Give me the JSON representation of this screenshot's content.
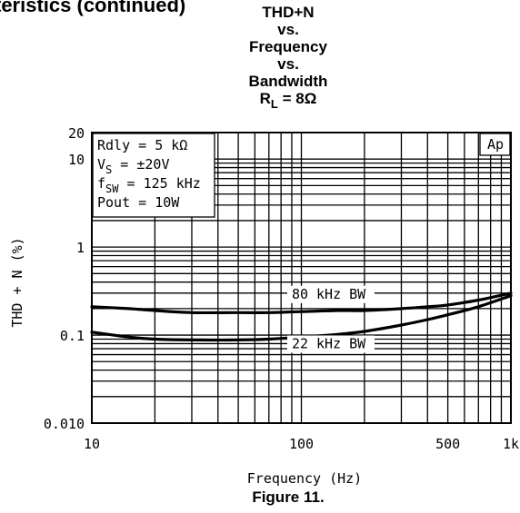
{
  "header_fragment": "teristics (continued)",
  "figure_caption": "Figure 11.",
  "chart_data": {
    "type": "line",
    "title_lines": [
      "THD+N",
      "vs.",
      "Frequency",
      "vs.",
      "Bandwidth"
    ],
    "title_rl": {
      "prefix": "R",
      "sub": "L",
      "suffix": " = 8Ω"
    },
    "conditions": [
      {
        "prefix": "Rdly = 5 kΩ",
        "sub": "",
        "suffix": ""
      },
      {
        "prefix": "V",
        "sub": "S",
        "suffix": " = ±20V"
      },
      {
        "prefix": "f",
        "sub": "SW",
        "suffix": " = 125 kHz"
      },
      {
        "prefix": "Pout = 10W",
        "sub": "",
        "suffix": ""
      }
    ],
    "brand_label": "Ap",
    "xlabel": "Frequency (Hz)",
    "ylabel": "THD + N (%)",
    "x_scale": "log",
    "y_scale": "log",
    "xlim": [
      10,
      1000
    ],
    "ylim": [
      0.01,
      20
    ],
    "x_ticks": [
      {
        "value": 10,
        "label": "10"
      },
      {
        "value": 100,
        "label": "100"
      },
      {
        "value": 500,
        "label": "500"
      },
      {
        "value": 1000,
        "label": "1k"
      }
    ],
    "y_ticks": [
      {
        "value": 20,
        "label": "20"
      },
      {
        "value": 10,
        "label": "10"
      },
      {
        "value": 1,
        "label": "1"
      },
      {
        "value": 0.1,
        "label": "0.1"
      },
      {
        "value": 0.01,
        "label": "0.010"
      }
    ],
    "grid": true,
    "series": [
      {
        "name": "80 kHz BW",
        "x": [
          10,
          15,
          20,
          30,
          50,
          70,
          100,
          150,
          200,
          300,
          400,
          500,
          700,
          1000
        ],
        "y": [
          0.21,
          0.2,
          0.19,
          0.18,
          0.18,
          0.18,
          0.185,
          0.19,
          0.19,
          0.2,
          0.21,
          0.22,
          0.25,
          0.3
        ]
      },
      {
        "name": "22 kHz BW",
        "x": [
          10,
          15,
          20,
          30,
          50,
          70,
          100,
          150,
          200,
          300,
          400,
          500,
          700,
          1000
        ],
        "y": [
          0.108,
          0.095,
          0.09,
          0.088,
          0.088,
          0.09,
          0.095,
          0.102,
          0.11,
          0.13,
          0.15,
          0.17,
          0.21,
          0.28
        ]
      }
    ]
  }
}
